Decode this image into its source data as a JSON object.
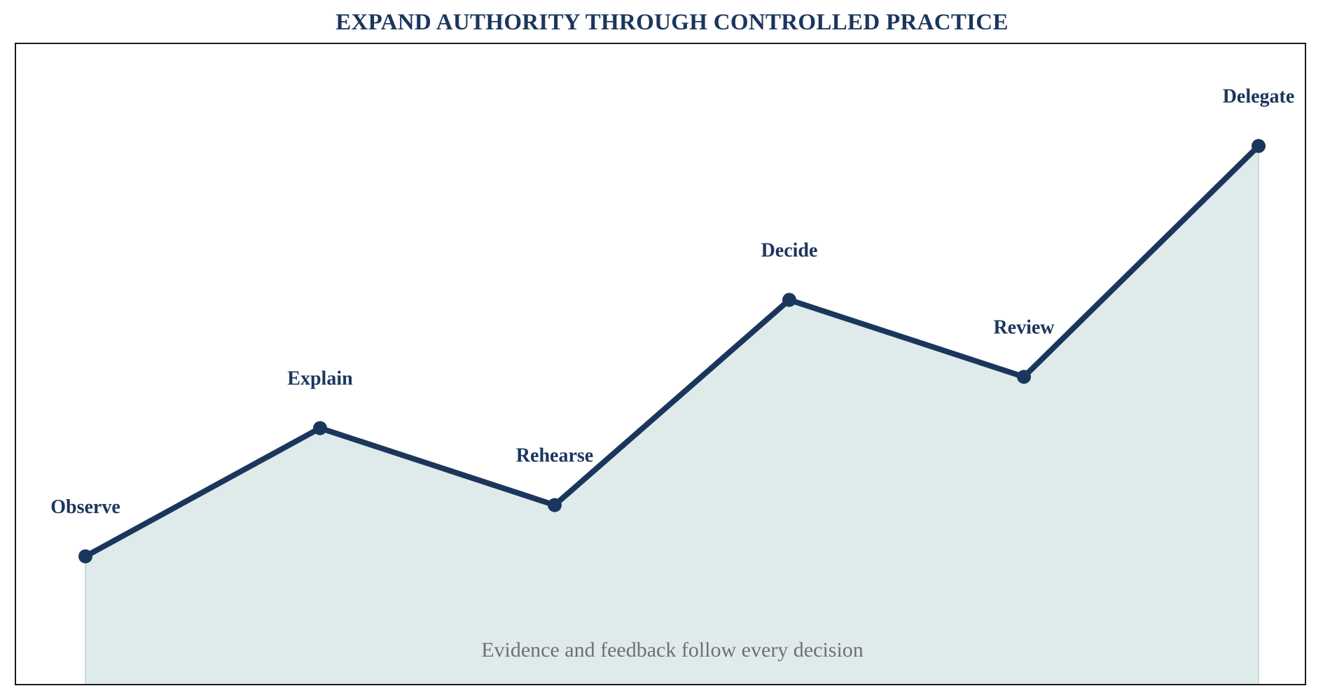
{
  "chart_data": {
    "type": "area",
    "title": "EXPAND AUTHORITY THROUGH CONTROLLED PRACTICE",
    "xlabel": "",
    "ylabel": "",
    "categories": [
      "Observe",
      "Explain",
      "Rehearse",
      "Decide",
      "Review",
      "Delegate"
    ],
    "values": [
      1.0,
      2.0,
      1.4,
      3.0,
      2.4,
      4.2
    ],
    "ylim": [
      0,
      5.0
    ],
    "grid": false,
    "legend": "none",
    "annotation": "Evidence and feedback follow every decision",
    "colors": {
      "line": "#1b365d",
      "fill": "#dfebea",
      "fill_edge": "#c7dcda",
      "title": "#1b365d",
      "labels": "#1b365d",
      "annotation": "#707070",
      "frame": "#1a1a1a"
    }
  }
}
